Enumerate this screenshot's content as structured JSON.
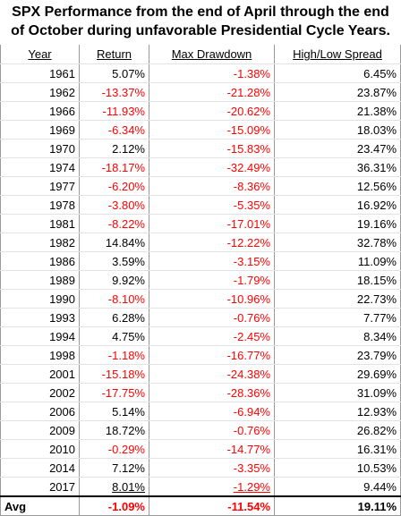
{
  "title": "SPX Performance from the end of April through the end of October during unfavorable Presidential Cycle Years.",
  "table": {
    "header": [
      "Year",
      "Return",
      "Max Drawdown",
      "High/Low Spread"
    ],
    "rows": [
      [
        "1961",
        "5.07%",
        "-1.38%",
        "6.45%"
      ],
      [
        "1962",
        "-13.37%",
        "-21.28%",
        "23.87%"
      ],
      [
        "1966",
        "-11.93%",
        "-20.62%",
        "21.38%"
      ],
      [
        "1969",
        "-6.34%",
        "-15.09%",
        "18.03%"
      ],
      [
        "1970",
        "2.12%",
        "-15.83%",
        "23.47%"
      ],
      [
        "1974",
        "-18.17%",
        "-32.49%",
        "36.31%"
      ],
      [
        "1977",
        "-6.20%",
        "-8.36%",
        "12.56%"
      ],
      [
        "1978",
        "-3.80%",
        "-5.35%",
        "16.92%"
      ],
      [
        "1981",
        "-8.22%",
        "-17.01%",
        "19.16%"
      ],
      [
        "1982",
        "14.84%",
        "-12.22%",
        "32.78%"
      ],
      [
        "1986",
        "3.59%",
        "-3.15%",
        "11.09%"
      ],
      [
        "1989",
        "9.92%",
        "-1.79%",
        "18.15%"
      ],
      [
        "1990",
        "-8.10%",
        "-10.96%",
        "22.73%"
      ],
      [
        "1993",
        "6.28%",
        "-0.76%",
        "7.77%"
      ],
      [
        "1994",
        "4.75%",
        "-2.45%",
        "8.34%"
      ],
      [
        "1998",
        "-1.18%",
        "-16.77%",
        "23.79%"
      ],
      [
        "2001",
        "-15.18%",
        "-24.38%",
        "29.69%"
      ],
      [
        "2002",
        "-17.75%",
        "-28.36%",
        "31.09%"
      ],
      [
        "2006",
        "5.14%",
        "-6.94%",
        "12.93%"
      ],
      [
        "2009",
        "18.72%",
        "-0.76%",
        "26.82%"
      ],
      [
        "2010",
        "-0.29%",
        "-14.77%",
        "16.31%"
      ],
      [
        "2014",
        "7.12%",
        "-3.35%",
        "10.53%"
      ],
      [
        "2017",
        "8.01%",
        "-1.29%",
        "9.44%"
      ]
    ],
    "footer": [
      "Avg",
      "-1.09%",
      "-11.54%",
      "19.11%"
    ]
  }
}
